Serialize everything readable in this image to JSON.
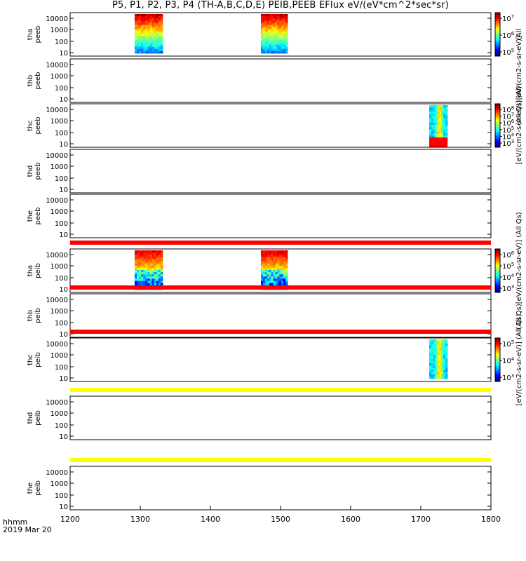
{
  "title": "P5, P1, P2, P3, P4 (TH-A,B,C,D,E) PEIB,PEEB EFlux eV/(eV*cm^2*sec*sr)",
  "time_label": "hhmm",
  "date_label": "2019 Mar 20",
  "colors": {
    "background": "#ffffff",
    "axis": "#000000",
    "bar_red": "#ff0000",
    "bar_yellow": "#ffff00"
  },
  "chart_data": {
    "type": "heatmap",
    "x_axis": {
      "range": [
        1200,
        1800
      ],
      "ticks": [
        "1200",
        "1300",
        "1400",
        "1500",
        "1600",
        "1700",
        "1800"
      ]
    },
    "y_ticks": [
      "10000",
      "1000",
      "100",
      "10"
    ],
    "y_ticks_alt": [
      "10000",
      "1000",
      "100",
      "10"
    ],
    "y_scale": "log",
    "panels": [
      {
        "probe": "tha",
        "product": "peeb",
        "colorbar": {
          "ticks": [
            "10^7",
            "10^6",
            "10^5"
          ],
          "label": "(All"
        },
        "intervals": [
          {
            "start": 1292,
            "end": 1332,
            "style": "hot"
          },
          {
            "start": 1472,
            "end": 1510,
            "style": "hot"
          }
        ]
      },
      {
        "probe": "thb",
        "product": "peeb",
        "colorbar": null,
        "side_label": "(All Qs)[eV/(cm2-s-sr-eV)]",
        "intervals": []
      },
      {
        "probe": "thc",
        "product": "peeb",
        "colorbar": {
          "ticks": [
            "10^8",
            "10^7",
            "10^6",
            "10^5",
            "10^4",
            "10^3"
          ],
          "label": "[eV/(cm2-s-sr-eV)] (All"
        },
        "intervals": [
          {
            "start": 1712,
            "end": 1738,
            "style": "cool"
          }
        ]
      },
      {
        "probe": "thd",
        "product": "peeb",
        "colorbar": null,
        "intervals": []
      },
      {
        "probe": "the",
        "product": "peeb",
        "colorbar": null,
        "intervals": []
      },
      {
        "probe": "tha",
        "product": "peib",
        "colorbar": {
          "ticks": [
            "10^6",
            "10^5",
            "10^4",
            "10^3"
          ],
          "label": "(All Qs)[eV/(cm2-s-sr-eV)] (All Qs)"
        },
        "top_bar": "bar_red",
        "intervals": [
          {
            "start": 1292,
            "end": 1332,
            "style": "ion"
          },
          {
            "start": 1472,
            "end": 1510,
            "style": "ion"
          }
        ]
      },
      {
        "probe": "thb",
        "product": "peib",
        "colorbar": null,
        "top_bar": "bar_red",
        "intervals": []
      },
      {
        "probe": "thc",
        "product": "peib",
        "colorbar": {
          "ticks": [
            "10^5",
            "10^4",
            "10^3"
          ],
          "label": "[eV/(cm2-s-sr-eV)] (All Qs)"
        },
        "top_bar": "bar_red",
        "intervals": [
          {
            "start": 1712,
            "end": 1738,
            "style": "cool"
          }
        ]
      },
      {
        "probe": "thd",
        "product": "peib",
        "colorbar": null,
        "top_bar": "bar_yellow",
        "intervals": []
      },
      {
        "probe": "the",
        "product": "peib",
        "colorbar": null,
        "top_bar": "bar_yellow",
        "intervals": []
      }
    ]
  }
}
